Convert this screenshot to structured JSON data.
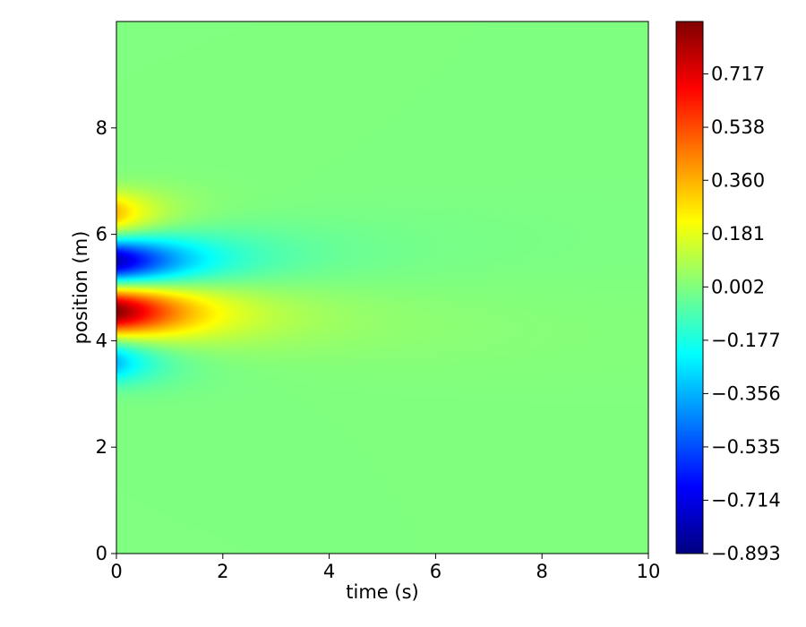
{
  "chart_data": {
    "type": "heatmap",
    "title": "",
    "xlabel": "time (s)",
    "ylabel": "position (m)",
    "xlim": [
      0,
      10
    ],
    "ylim": [
      0,
      10
    ],
    "xticks": [
      0,
      2,
      4,
      6,
      8,
      10
    ],
    "xtick_labels": [
      "0",
      "2",
      "4",
      "6",
      "8",
      "10"
    ],
    "yticks": [
      0,
      2,
      4,
      6,
      8
    ],
    "ytick_labels": [
      "0",
      "2",
      "4",
      "6",
      "8"
    ],
    "colormap": "jet",
    "value_range": [
      -0.893,
      0.893
    ],
    "colorbar": {
      "ticks": [
        0.717,
        0.538,
        0.36,
        0.181,
        0.002,
        -0.177,
        -0.356,
        -0.535,
        -0.714,
        -0.893
      ],
      "tick_labels": [
        "0.717",
        "0.538",
        "0.360",
        "0.181",
        "0.002",
        "−0.177",
        "−0.356",
        "−0.535",
        "−0.714",
        "−0.893"
      ]
    },
    "grid": false,
    "features": [
      {
        "position_m": 6.4,
        "time_range_s": [
          0,
          2.5
        ],
        "peak_value": 0.35,
        "sign": "positive"
      },
      {
        "position_m": 5.5,
        "time_range_s": [
          0,
          10
        ],
        "peak_value": -0.8,
        "sign": "negative"
      },
      {
        "position_m": 4.55,
        "time_range_s": [
          0,
          10
        ],
        "peak_value": 0.89,
        "sign": "positive"
      },
      {
        "position_m": 3.6,
        "time_range_s": [
          0,
          2.5
        ],
        "peak_value": -0.35,
        "sign": "negative"
      }
    ]
  }
}
